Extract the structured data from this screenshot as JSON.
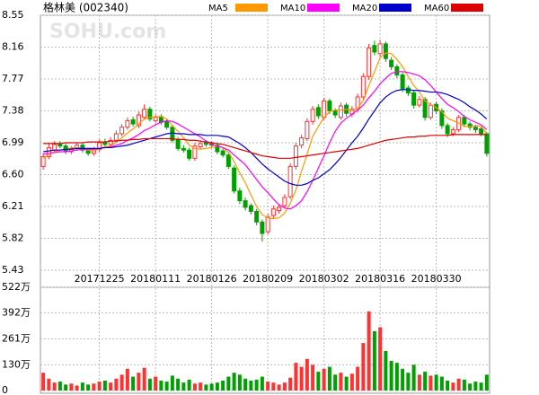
{
  "header": {
    "title": "格林美  (002340)",
    "watermark": "SOHU.com"
  },
  "chart_data": [
    {
      "type": "candlestick",
      "up_color": "#ff3232",
      "down_color": "#00a000",
      "categories": [
        null,
        null,
        null,
        null,
        null,
        null,
        null,
        null,
        null,
        null,
        "20171225",
        null,
        null,
        null,
        null,
        null,
        null,
        null,
        null,
        null,
        "20180111",
        null,
        null,
        null,
        null,
        null,
        null,
        null,
        null,
        null,
        "20180126",
        null,
        null,
        null,
        null,
        null,
        null,
        null,
        null,
        null,
        "20180209",
        null,
        null,
        null,
        null,
        null,
        null,
        null,
        null,
        null,
        "20180302",
        null,
        null,
        null,
        null,
        null,
        null,
        null,
        null,
        null,
        "20180316",
        null,
        null,
        null,
        null,
        null,
        null,
        null,
        null,
        null,
        "20180330",
        null,
        null,
        null,
        null,
        null,
        null,
        null,
        null,
        null
      ],
      "open": [
        6.7,
        6.82,
        6.9,
        6.97,
        6.95,
        6.88,
        6.92,
        6.96,
        6.9,
        6.86,
        6.91,
        7.0,
        6.97,
        7.02,
        7.1,
        7.18,
        7.27,
        7.2,
        7.3,
        7.4,
        7.26,
        7.31,
        7.25,
        7.18,
        7.03,
        6.92,
        6.9,
        6.8,
        6.94,
        6.99,
        6.98,
        6.96,
        6.89,
        6.84,
        6.68,
        6.4,
        6.28,
        6.22,
        6.15,
        6.02,
        5.9,
        6.1,
        6.16,
        6.22,
        6.33,
        6.7,
        6.96,
        7.04,
        7.25,
        7.42,
        7.3,
        7.5,
        7.38,
        7.3,
        7.45,
        7.34,
        7.4,
        7.55,
        7.8,
        8.18,
        8.08,
        8.2,
        8.0,
        7.92,
        7.82,
        7.66,
        7.6,
        7.45,
        7.52,
        7.3,
        7.46,
        7.38,
        7.2,
        7.1,
        7.15,
        7.3,
        7.22,
        7.18,
        7.16,
        7.1
      ],
      "high": [
        6.86,
        6.98,
        7.01,
        7.01,
        6.98,
        6.95,
        6.99,
        6.99,
        6.93,
        6.94,
        7.03,
        7.04,
        7.06,
        7.14,
        7.22,
        7.3,
        7.31,
        7.37,
        7.46,
        7.43,
        7.34,
        7.34,
        7.28,
        7.21,
        7.06,
        6.96,
        6.93,
        6.99,
        7.02,
        7.02,
        7.01,
        6.99,
        6.92,
        6.87,
        6.71,
        6.44,
        6.32,
        6.25,
        6.18,
        6.05,
        6.12,
        6.22,
        6.24,
        6.36,
        6.74,
        6.99,
        7.09,
        7.29,
        7.44,
        7.46,
        7.54,
        7.53,
        7.41,
        7.48,
        7.48,
        7.44,
        7.59,
        7.84,
        8.2,
        8.24,
        8.25,
        8.23,
        8.04,
        7.95,
        7.85,
        7.69,
        7.63,
        7.56,
        7.55,
        7.48,
        7.49,
        7.41,
        7.23,
        7.18,
        7.33,
        7.33,
        7.25,
        7.21,
        7.19,
        7.12
      ],
      "low": [
        6.66,
        6.79,
        6.87,
        6.92,
        6.85,
        6.85,
        6.89,
        6.87,
        6.83,
        6.83,
        6.88,
        6.94,
        6.94,
        6.99,
        7.07,
        7.15,
        7.19,
        7.17,
        7.27,
        7.25,
        7.23,
        7.21,
        7.15,
        6.99,
        6.89,
        6.87,
        6.77,
        6.77,
        6.91,
        6.94,
        6.93,
        6.85,
        6.81,
        6.67,
        6.37,
        6.24,
        6.16,
        6.11,
        5.98,
        5.78,
        5.87,
        6.06,
        6.12,
        6.19,
        6.3,
        6.66,
        6.92,
        7.01,
        7.21,
        7.28,
        7.27,
        7.34,
        7.29,
        7.27,
        7.31,
        7.3,
        7.36,
        7.51,
        7.76,
        8.06,
        8.04,
        7.98,
        7.88,
        7.78,
        7.61,
        7.56,
        7.41,
        7.42,
        7.26,
        7.27,
        7.34,
        7.16,
        7.06,
        7.07,
        7.12,
        7.18,
        7.14,
        7.11,
        7.07,
        6.82
      ],
      "close": [
        6.82,
        6.93,
        6.97,
        6.95,
        6.88,
        6.92,
        6.96,
        6.9,
        6.86,
        6.91,
        6.99,
        6.97,
        7.02,
        7.1,
        7.18,
        7.26,
        7.22,
        7.33,
        7.4,
        7.28,
        7.3,
        7.24,
        7.18,
        7.02,
        6.92,
        6.9,
        6.8,
        6.95,
        6.98,
        6.97,
        6.96,
        6.88,
        6.84,
        6.7,
        6.4,
        6.28,
        6.2,
        6.15,
        6.02,
        5.88,
        6.08,
        6.18,
        6.2,
        6.32,
        6.7,
        6.95,
        7.05,
        7.25,
        7.4,
        7.32,
        7.5,
        7.38,
        7.33,
        7.44,
        7.35,
        7.4,
        7.55,
        7.8,
        8.15,
        8.1,
        8.2,
        8.02,
        7.92,
        7.82,
        7.65,
        7.6,
        7.45,
        7.52,
        7.3,
        7.45,
        7.38,
        7.2,
        7.1,
        7.15,
        7.3,
        7.22,
        7.18,
        7.15,
        7.1,
        6.86
      ],
      "series": [
        {
          "name": "MA5",
          "color": "#ff9900",
          "values": [
            6.8,
            6.84,
            6.88,
            6.9,
            6.91,
            6.93,
            6.93,
            6.92,
            6.9,
            6.89,
            6.92,
            6.94,
            6.95,
            7.0,
            7.05,
            7.11,
            7.16,
            7.22,
            7.28,
            7.3,
            7.31,
            7.31,
            7.28,
            7.2,
            7.13,
            7.05,
            6.96,
            6.92,
            6.91,
            6.92,
            6.93,
            6.95,
            6.93,
            6.87,
            6.76,
            6.62,
            6.5,
            6.35,
            6.21,
            6.11,
            6.07,
            6.06,
            6.07,
            6.13,
            6.25,
            6.41,
            6.64,
            6.85,
            7.07,
            7.19,
            7.3,
            7.37,
            7.39,
            7.39,
            7.4,
            7.38,
            7.41,
            7.51,
            7.69,
            7.86,
            8.03,
            8.09,
            8.08,
            8.01,
            7.92,
            7.8,
            7.69,
            7.61,
            7.5,
            7.46,
            7.42,
            7.37,
            7.29,
            7.26,
            7.23,
            7.19,
            7.19,
            7.2,
            7.19,
            7.1
          ]
        },
        {
          "name": "MA10",
          "color": "#ff00ff",
          "values": [
            6.85,
            6.86,
            6.87,
            6.88,
            6.88,
            6.89,
            6.9,
            6.91,
            6.91,
            6.91,
            6.92,
            6.93,
            6.94,
            6.96,
            6.98,
            7.02,
            7.05,
            7.09,
            7.14,
            7.17,
            7.21,
            7.24,
            7.26,
            7.25,
            7.22,
            7.18,
            7.14,
            7.1,
            7.06,
            7.01,
            6.97,
            6.95,
            6.93,
            6.9,
            6.84,
            6.78,
            6.72,
            6.63,
            6.54,
            6.45,
            6.38,
            6.3,
            6.23,
            6.19,
            6.18,
            6.22,
            6.28,
            6.39,
            6.53,
            6.68,
            6.83,
            6.99,
            7.13,
            7.23,
            7.29,
            7.34,
            7.39,
            7.45,
            7.54,
            7.62,
            7.71,
            7.78,
            7.84,
            7.86,
            7.86,
            7.85,
            7.83,
            7.81,
            7.76,
            7.69,
            7.61,
            7.53,
            7.46,
            7.42,
            7.37,
            7.31,
            7.27,
            7.24,
            7.21,
            7.15
          ]
        },
        {
          "name": "MA20",
          "color": "#0000cc",
          "values": [
            6.88,
            6.89,
            6.9,
            6.9,
            6.91,
            6.91,
            6.92,
            6.92,
            6.92,
            6.92,
            6.92,
            6.93,
            6.93,
            6.94,
            6.95,
            6.96,
            6.98,
            7.0,
            7.02,
            7.04,
            7.06,
            7.08,
            7.1,
            7.11,
            7.1,
            7.1,
            7.09,
            7.09,
            7.09,
            7.08,
            7.08,
            7.08,
            7.07,
            7.06,
            7.02,
            6.98,
            6.93,
            6.87,
            6.8,
            6.73,
            6.67,
            6.62,
            6.57,
            6.52,
            6.49,
            6.47,
            6.47,
            6.49,
            6.53,
            6.56,
            6.61,
            6.66,
            6.73,
            6.81,
            6.9,
            6.99,
            7.07,
            7.17,
            7.28,
            7.38,
            7.48,
            7.55,
            7.6,
            7.63,
            7.64,
            7.64,
            7.63,
            7.63,
            7.62,
            7.61,
            7.61,
            7.6,
            7.58,
            7.55,
            7.52,
            7.48,
            7.43,
            7.39,
            7.34,
            7.28
          ]
        },
        {
          "name": "MA60",
          "color": "#dd0000",
          "values": [
            6.98,
            6.98,
            6.98,
            6.98,
            6.99,
            6.99,
            6.99,
            6.99,
            7.0,
            7.0,
            7.0,
            7.0,
            7.01,
            7.01,
            7.02,
            7.02,
            7.03,
            7.03,
            7.04,
            7.04,
            7.04,
            7.04,
            7.04,
            7.04,
            7.03,
            7.03,
            7.02,
            7.02,
            7.01,
            7.0,
            6.99,
            6.98,
            6.97,
            6.95,
            6.93,
            6.91,
            6.89,
            6.87,
            6.85,
            6.83,
            6.82,
            6.81,
            6.8,
            6.8,
            6.8,
            6.81,
            6.82,
            6.83,
            6.84,
            6.85,
            6.86,
            6.87,
            6.88,
            6.89,
            6.9,
            6.91,
            6.92,
            6.94,
            6.96,
            6.98,
            7.0,
            7.02,
            7.03,
            7.04,
            7.05,
            7.06,
            7.06,
            7.07,
            7.07,
            7.08,
            7.08,
            7.08,
            7.08,
            7.09,
            7.09,
            7.09,
            7.09,
            7.09,
            7.09,
            7.09
          ]
        }
      ],
      "ylim": [
        5.43,
        8.55
      ],
      "yticks": [
        5.43,
        5.82,
        6.21,
        {
          "value": 6.6,
          "label": "6.60"
        },
        6.99,
        7.38,
        7.77,
        8.16,
        8.55
      ],
      "grid": true
    },
    {
      "type": "bar",
      "values": [
        90,
        60,
        40,
        45,
        30,
        35,
        25,
        40,
        30,
        35,
        45,
        50,
        40,
        60,
        80,
        110,
        70,
        90,
        115,
        60,
        70,
        50,
        45,
        75,
        60,
        40,
        55,
        35,
        40,
        30,
        35,
        40,
        50,
        70,
        90,
        80,
        60,
        50,
        55,
        70,
        45,
        40,
        30,
        40,
        65,
        140,
        120,
        160,
        130,
        95,
        110,
        120,
        80,
        90,
        70,
        85,
        120,
        240,
        400,
        300,
        320,
        200,
        150,
        140,
        110,
        90,
        130,
        80,
        95,
        75,
        80,
        70,
        50,
        40,
        60,
        55,
        35,
        45,
        40,
        80
      ],
      "ylim": [
        0,
        522
      ],
      "yticks": [
        0,
        {
          "value": 130,
          "label": "130万"
        },
        {
          "value": 261,
          "label": "261万"
        },
        {
          "value": 392,
          "label": "392万"
        },
        {
          "value": 522,
          "label": "522万"
        }
      ],
      "grid": true
    }
  ]
}
